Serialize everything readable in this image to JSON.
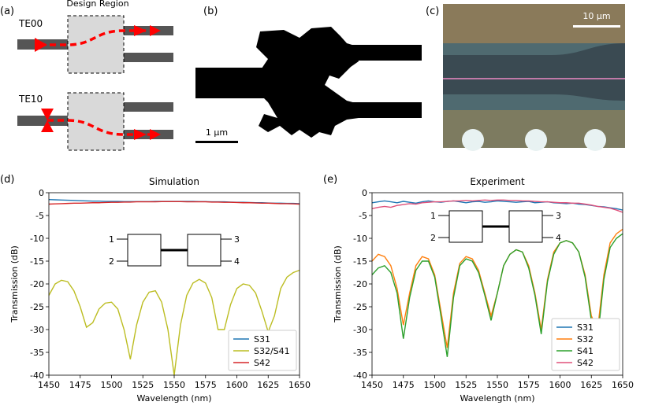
{
  "panels": [
    {
      "label": "(a)",
      "title": "Design Region",
      "modes": [
        "TE00",
        "TE10"
      ]
    },
    {
      "label": "(b)",
      "scale_bar": "1 μm"
    },
    {
      "label": "(c)",
      "scale_bar": "10 μm"
    }
  ],
  "chart_data": [
    {
      "type": "line",
      "label": "(d)",
      "title": "Simulation",
      "xlabel": "Wavelength (nm)",
      "ylabel": "Transmission (dB)",
      "x": [
        1450,
        1455,
        1460,
        1465,
        1470,
        1475,
        1480,
        1485,
        1490,
        1495,
        1500,
        1505,
        1510,
        1515,
        1520,
        1525,
        1530,
        1535,
        1540,
        1545,
        1550,
        1555,
        1560,
        1565,
        1570,
        1575,
        1580,
        1585,
        1590,
        1595,
        1600,
        1605,
        1610,
        1615,
        1620,
        1625,
        1630,
        1635,
        1640,
        1645,
        1650
      ],
      "series": [
        {
          "name": "S31",
          "color": "#1f77b4",
          "values": [
            -1.5,
            -1.55,
            -1.6,
            -1.65,
            -1.7,
            -1.75,
            -1.8,
            -1.85,
            -1.85,
            -1.9,
            -1.9,
            -1.9,
            -1.95,
            -1.95,
            -1.95,
            -1.95,
            -1.95,
            -1.9,
            -1.9,
            -1.9,
            -1.9,
            -1.9,
            -1.9,
            -1.9,
            -1.95,
            -1.95,
            -2,
            -2,
            -2,
            -2.05,
            -2.1,
            -2.1,
            -2.15,
            -2.2,
            -2.2,
            -2.25,
            -2.3,
            -2.3,
            -2.35,
            -2.35,
            -2.4
          ]
        },
        {
          "name": "S32/S41",
          "color": "#bcbd22",
          "values": [
            -22.5,
            -20,
            -19.2,
            -19.5,
            -21.5,
            -25,
            -29.5,
            -28.5,
            -25.5,
            -24.2,
            -24,
            -25.5,
            -30,
            -36.5,
            -29,
            -24,
            -21.8,
            -21.5,
            -24,
            -30,
            -40,
            -29,
            -22.5,
            -19.8,
            -19,
            -19.8,
            -23,
            -30,
            -30,
            -24.5,
            -21,
            -20,
            -20.3,
            -22,
            -26,
            -30.5,
            -27,
            -21,
            -18.5,
            -17.5,
            -17
          ]
        },
        {
          "name": "S42",
          "color": "#d62728",
          "values": [
            -2.5,
            -2.45,
            -2.4,
            -2.35,
            -2.3,
            -2.3,
            -2.25,
            -2.2,
            -2.2,
            -2.15,
            -2.1,
            -2.1,
            -2.05,
            -2.05,
            -2,
            -2,
            -2,
            -2,
            -1.95,
            -1.95,
            -1.95,
            -1.95,
            -2,
            -2,
            -2,
            -2,
            -2.05,
            -2.05,
            -2.1,
            -2.1,
            -2.15,
            -2.2,
            -2.2,
            -2.25,
            -2.3,
            -2.3,
            -2.35,
            -2.4,
            -2.4,
            -2.45,
            -2.5
          ]
        }
      ],
      "xlim": [
        1450,
        1650
      ],
      "ylim": [
        -40,
        0
      ],
      "xticks": [
        1450,
        1475,
        1500,
        1525,
        1550,
        1575,
        1600,
        1625,
        1650
      ],
      "yticks": [
        0,
        -5,
        -10,
        -15,
        -20,
        -25,
        -30,
        -35,
        -40
      ],
      "legend": "lower right",
      "inset_ports": [
        "1",
        "2",
        "3",
        "4"
      ]
    },
    {
      "type": "line",
      "label": "(e)",
      "title": "Experiment",
      "xlabel": "Wavelength (nm)",
      "ylabel": "Transmission (dB)",
      "x": [
        1450,
        1455,
        1460,
        1465,
        1470,
        1475,
        1480,
        1485,
        1490,
        1495,
        1500,
        1505,
        1510,
        1515,
        1520,
        1525,
        1530,
        1535,
        1540,
        1545,
        1550,
        1555,
        1560,
        1565,
        1570,
        1575,
        1580,
        1585,
        1590,
        1595,
        1600,
        1605,
        1610,
        1615,
        1620,
        1625,
        1630,
        1635,
        1640,
        1645,
        1650
      ],
      "series": [
        {
          "name": "S31",
          "color": "#1f77b4",
          "values": [
            -2.2,
            -2,
            -1.8,
            -2,
            -2.2,
            -1.9,
            -2.1,
            -2.3,
            -2,
            -1.8,
            -2,
            -2.1,
            -1.9,
            -1.8,
            -2,
            -2.2,
            -2,
            -1.9,
            -2.1,
            -2,
            -1.8,
            -1.9,
            -2,
            -2.1,
            -2,
            -1.9,
            -2.2,
            -2.1,
            -2,
            -2.2,
            -2.3,
            -2.4,
            -2.3,
            -2.5,
            -2.6,
            -2.8,
            -3,
            -3.1,
            -3.3,
            -3.5,
            -3.8
          ]
        },
        {
          "name": "S32",
          "color": "#ff7f0e",
          "values": [
            -15,
            -13.5,
            -14,
            -16,
            -21,
            -29,
            -22,
            -16,
            -14,
            -14.5,
            -18,
            -26,
            -34,
            -22,
            -15.5,
            -14,
            -14.5,
            -17,
            -22,
            -27,
            -22,
            -16,
            -13.5,
            -12.5,
            -13,
            -16,
            -22,
            -30,
            -19,
            -13,
            -11,
            -10.5,
            -11,
            -13,
            -18,
            -27,
            -30,
            -18,
            -11,
            -9,
            -8
          ]
        },
        {
          "name": "S41",
          "color": "#2ca02c",
          "values": [
            -18,
            -16.5,
            -16,
            -17.5,
            -22,
            -32,
            -23,
            -17,
            -15,
            -15,
            -18.5,
            -27,
            -36,
            -23,
            -16,
            -14.5,
            -15,
            -17.5,
            -22.5,
            -28,
            -22,
            -16,
            -13.5,
            -12.5,
            -13,
            -16.5,
            -22.5,
            -31,
            -19.5,
            -13.5,
            -11,
            -10.5,
            -11,
            -13,
            -18.5,
            -28,
            -32,
            -19,
            -12,
            -10,
            -9
          ]
        },
        {
          "name": "S42",
          "color": "#e0507a",
          "values": [
            -3.5,
            -3.2,
            -3,
            -3.2,
            -2.8,
            -2.6,
            -2.4,
            -2.5,
            -2.2,
            -2.1,
            -2,
            -2,
            -1.9,
            -1.8,
            -1.8,
            -1.7,
            -1.8,
            -1.7,
            -1.6,
            -1.7,
            -1.6,
            -1.6,
            -1.7,
            -1.7,
            -1.8,
            -1.8,
            -1.9,
            -2,
            -2,
            -2.1,
            -2.2,
            -2.2,
            -2.3,
            -2.3,
            -2.5,
            -2.7,
            -3,
            -3.2,
            -3.4,
            -3.8,
            -4.3
          ]
        }
      ],
      "xlim": [
        1450,
        1650
      ],
      "ylim": [
        -40,
        0
      ],
      "xticks": [
        1450,
        1475,
        1500,
        1525,
        1550,
        1575,
        1600,
        1625,
        1650
      ],
      "yticks": [
        0,
        -5,
        -10,
        -15,
        -20,
        -25,
        -30,
        -35,
        -40
      ],
      "legend": "lower right",
      "inset_ports": [
        "1",
        "2",
        "3",
        "4"
      ]
    }
  ]
}
